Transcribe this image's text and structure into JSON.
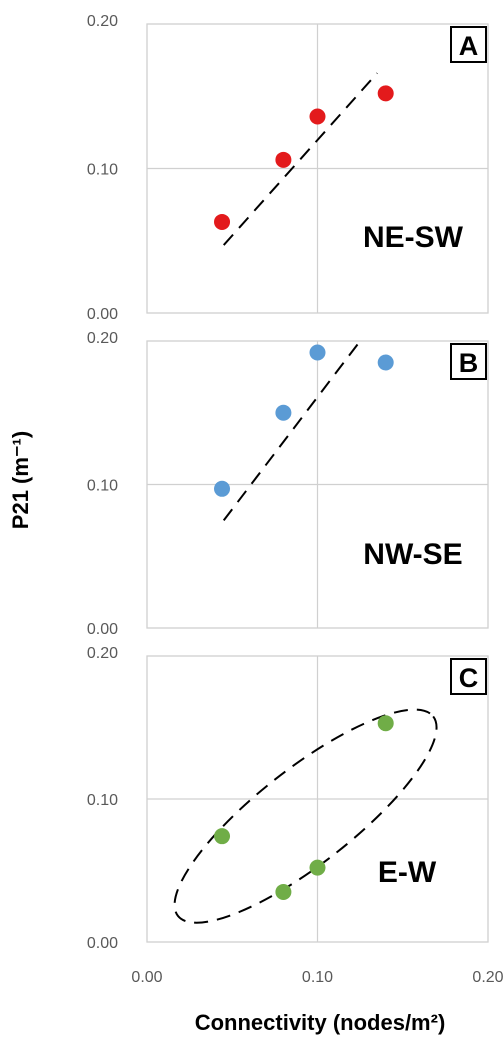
{
  "chart_data": {
    "type": "scatter",
    "xlabel": "Connectivity (nodes/m²)",
    "ylabel": "P21 (m⁻¹)",
    "xlim": [
      0,
      0.2
    ],
    "x_ticks": [
      "0.00",
      "0.10",
      "0.20"
    ],
    "grid": "major gridlines at 0.10",
    "panels": [
      {
        "letter": "A",
        "label": "NE-SW",
        "ylim": [
          0,
          0.2
        ],
        "y_ticks": [
          "0.00",
          "0.10",
          "0.20"
        ],
        "color": "#e31a1c",
        "points": [
          {
            "x": 0.044,
            "y": 0.063
          },
          {
            "x": 0.08,
            "y": 0.106
          },
          {
            "x": 0.1,
            "y": 0.136
          },
          {
            "x": 0.14,
            "y": 0.152
          }
        ],
        "fit": {
          "kind": "line",
          "from": [
            0.045,
            0.047
          ],
          "to": [
            0.135,
            0.166
          ]
        }
      },
      {
        "letter": "B",
        "label": "NW-SE",
        "ylim": [
          0,
          0.2
        ],
        "y_ticks": [
          "0.00",
          "0.10",
          "0.20"
        ],
        "color": "#5b9bd5",
        "points": [
          {
            "x": 0.044,
            "y": 0.097
          },
          {
            "x": 0.08,
            "y": 0.15
          },
          {
            "x": 0.1,
            "y": 0.192
          },
          {
            "x": 0.14,
            "y": 0.185
          }
        ],
        "fit": {
          "kind": "line",
          "from": [
            0.045,
            0.075
          ],
          "to": [
            0.125,
            0.2
          ]
        }
      },
      {
        "letter": "C",
        "label": "E-W",
        "ylim": [
          0,
          0.2
        ],
        "y_ticks": [
          "0.00",
          "0.10",
          "0.20"
        ],
        "color": "#70ad47",
        "points": [
          {
            "x": 0.044,
            "y": 0.074
          },
          {
            "x": 0.08,
            "y": 0.035
          },
          {
            "x": 0.1,
            "y": 0.052
          },
          {
            "x": 0.14,
            "y": 0.153
          }
        ],
        "fit": {
          "kind": "ellipse",
          "center": [
            0.093,
            0.088
          ],
          "rx": 0.095,
          "ry": 0.028,
          "angle_deg": -38
        }
      }
    ]
  }
}
